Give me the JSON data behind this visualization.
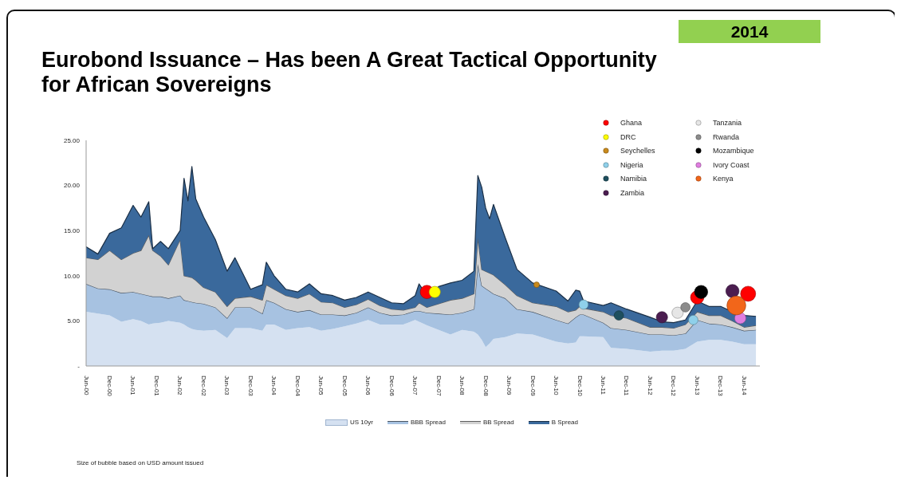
{
  "chart_data": {
    "type": "area",
    "title": "Eurobond Issuance – Has been A Great Tactical Opportunity for African Sovereigns",
    "subtitle": "2014",
    "annotations": [
      "Size of bubble based on USD amount issued"
    ],
    "stacked": true,
    "legend": "bottom",
    "grid": false,
    "x": [
      "2000-06",
      "2000-09",
      "2000-12",
      "2001-03",
      "2001-06",
      "2001-08",
      "2001-10",
      "2001-11",
      "2002-01",
      "2002-03",
      "2002-06",
      "2002-07",
      "2002-08",
      "2002-09",
      "2002-10",
      "2002-12",
      "2003-03",
      "2003-06",
      "2003-08",
      "2003-12",
      "2004-03",
      "2004-04",
      "2004-06",
      "2004-09",
      "2004-12",
      "2005-03",
      "2005-06",
      "2005-09",
      "2005-12",
      "2006-03",
      "2006-06",
      "2006-09",
      "2006-12",
      "2007-03",
      "2007-06",
      "2007-07",
      "2007-09",
      "2007-12",
      "2008-03",
      "2008-06",
      "2008-09",
      "2008-10",
      "2008-11",
      "2008-12",
      "2009-01",
      "2009-02",
      "2009-05",
      "2009-08",
      "2009-12",
      "2010-06",
      "2010-09",
      "2010-11",
      "2010-12",
      "2011-01",
      "2011-06",
      "2011-08",
      "2011-12",
      "2012-06",
      "2012-09",
      "2012-12",
      "2013-03",
      "2013-06",
      "2013-09",
      "2013-12",
      "2014-03",
      "2014-06",
      "2014-09"
    ],
    "xlim": [
      "2000-06",
      "2014-10"
    ],
    "xticks": [
      {
        "value": "2000-06",
        "label": "Jun-00"
      },
      {
        "value": "2000-12",
        "label": "Dec-00"
      },
      {
        "value": "2001-06",
        "label": "Jun-01"
      },
      {
        "value": "2001-12",
        "label": "Dec-01"
      },
      {
        "value": "2002-06",
        "label": "Jun-02"
      },
      {
        "value": "2002-12",
        "label": "Dec-02"
      },
      {
        "value": "2003-06",
        "label": "Jun-03"
      },
      {
        "value": "2003-12",
        "label": "Dec-03"
      },
      {
        "value": "2004-06",
        "label": "Jun-04"
      },
      {
        "value": "2004-12",
        "label": "Dec-04"
      },
      {
        "value": "2005-06",
        "label": "Jun-05"
      },
      {
        "value": "2005-12",
        "label": "Dec-05"
      },
      {
        "value": "2006-06",
        "label": "Jun-06"
      },
      {
        "value": "2006-12",
        "label": "Dec-06"
      },
      {
        "value": "2007-06",
        "label": "Jun-07"
      },
      {
        "value": "2007-12",
        "label": "Dec-07"
      },
      {
        "value": "2008-06",
        "label": "Jun-08"
      },
      {
        "value": "2008-12",
        "label": "Dec-08"
      },
      {
        "value": "2009-06",
        "label": "Jun-09"
      },
      {
        "value": "2009-12",
        "label": "Dec-09"
      },
      {
        "value": "2010-06",
        "label": "Jun-10"
      },
      {
        "value": "2010-12",
        "label": "Dec-10"
      },
      {
        "value": "2011-06",
        "label": "Jun-11"
      },
      {
        "value": "2011-12",
        "label": "Dec-11"
      },
      {
        "value": "2012-06",
        "label": "Jun-12"
      },
      {
        "value": "2012-12",
        "label": "Dec-12"
      },
      {
        "value": "2013-06",
        "label": "Jun-13"
      },
      {
        "value": "2013-12",
        "label": "Dec-13"
      },
      {
        "value": "2014-06",
        "label": "Jun-14"
      }
    ],
    "ylim": [
      0,
      25
    ],
    "yticks": [
      {
        "value": 0,
        "label": "-"
      },
      {
        "value": 5,
        "label": "5.00"
      },
      {
        "value": 10,
        "label": "10.00"
      },
      {
        "value": 15,
        "label": "15.00"
      },
      {
        "value": 20,
        "label": "20.00"
      },
      {
        "value": 25,
        "label": "25.00"
      }
    ],
    "series": [
      {
        "name": "US 10yr",
        "color": "#d5e1f1",
        "values": [
          6.0,
          5.8,
          5.6,
          4.9,
          5.2,
          5.0,
          4.6,
          4.7,
          4.8,
          5.0,
          4.8,
          4.6,
          4.3,
          4.1,
          4.0,
          3.9,
          4.0,
          3.1,
          4.2,
          4.2,
          3.9,
          4.6,
          4.6,
          4.0,
          4.2,
          4.3,
          3.9,
          4.1,
          4.4,
          4.7,
          5.1,
          4.6,
          4.6,
          4.6,
          5.1,
          4.9,
          4.5,
          4.0,
          3.5,
          4.0,
          3.8,
          3.5,
          2.9,
          2.1,
          2.5,
          3.0,
          3.2,
          3.6,
          3.5,
          2.7,
          2.5,
          2.6,
          3.3,
          3.3,
          3.2,
          2.0,
          1.9,
          1.6,
          1.7,
          1.7,
          1.9,
          2.7,
          2.9,
          2.9,
          2.7,
          2.4,
          2.4
        ]
      },
      {
        "name": "BBB Spread",
        "color": "#a7c2e1",
        "values": [
          3.1,
          2.8,
          2.9,
          3.2,
          3.0,
          3.0,
          3.2,
          3.0,
          2.9,
          2.5,
          3.0,
          2.7,
          2.9,
          3.0,
          3.0,
          3.0,
          2.5,
          2.2,
          2.3,
          2.3,
          1.9,
          2.7,
          2.4,
          2.3,
          1.8,
          1.9,
          1.8,
          1.6,
          1.2,
          1.2,
          1.4,
          1.3,
          1.0,
          1.1,
          1.0,
          1.2,
          1.4,
          1.8,
          2.2,
          1.9,
          2.5,
          7.8,
          6.0,
          6.5,
          5.8,
          5.0,
          4.3,
          2.7,
          2.5,
          2.4,
          2.2,
          2.8,
          2.4,
          2.4,
          1.6,
          2.2,
          2.1,
          1.9,
          1.8,
          1.7,
          1.7,
          2.4,
          1.8,
          1.7,
          1.6,
          1.5,
          1.6
        ]
      },
      {
        "name": "BB Spread",
        "color": "#d2d2d2",
        "values": [
          2.9,
          3.2,
          4.3,
          3.7,
          4.3,
          4.8,
          6.7,
          5.1,
          4.5,
          3.7,
          6.2,
          2.7,
          2.7,
          2.7,
          2.5,
          1.8,
          1.7,
          1.3,
          1.0,
          1.2,
          1.5,
          1.7,
          1.5,
          1.5,
          1.5,
          1.8,
          1.4,
          1.3,
          0.9,
          0.9,
          0.9,
          0.8,
          0.7,
          0.5,
          0.4,
          0.9,
          0.6,
          1.1,
          1.6,
          1.6,
          1.7,
          2.9,
          1.8,
          1.9,
          2.0,
          2.1,
          1.5,
          1.5,
          1.0,
          1.5,
          1.3,
          0.8,
          0.9,
          0.7,
          1.2,
          1.4,
          1.3,
          0.8,
          0.8,
          0.8,
          1.0,
          0.9,
          0.9,
          1.0,
          0.7,
          0.4,
          0.5
        ]
      },
      {
        "name": "B Spread",
        "color": "#3a699c",
        "values": [
          1.2,
          0.6,
          1.9,
          3.5,
          5.3,
          3.7,
          3.7,
          0.2,
          1.6,
          1.8,
          1.0,
          10.8,
          8.4,
          12.3,
          9.0,
          7.8,
          5.8,
          3.9,
          4.5,
          0.8,
          1.7,
          2.5,
          1.5,
          0.7,
          0.7,
          1.1,
          0.9,
          0.8,
          0.8,
          0.8,
          0.8,
          0.9,
          0.7,
          0.7,
          1.3,
          2.1,
          1.3,
          1.9,
          1.9,
          2.0,
          2.5,
          6.9,
          9.1,
          7.0,
          6.0,
          7.8,
          5.2,
          2.9,
          2.2,
          1.7,
          1.2,
          2.2,
          1.7,
          0.8,
          0.7,
          1.4,
          1.0,
          1.1,
          0.6,
          0.6,
          0.5,
          1.2,
          1.0,
          1.0,
          1.0,
          1.3,
          1.0
        ]
      },
      {
        "name": "Ghana",
        "type": "bubble",
        "color": "#ff0000",
        "x": [
          "2007-09",
          "2013-06",
          "2014-07"
        ],
        "values": [
          8.2,
          7.6,
          8.0
        ],
        "sizes": [
          0.5,
          0.5,
          0.64
        ]
      },
      {
        "name": "DRC",
        "type": "bubble",
        "color": "#ffff00",
        "x": [
          "2007-11"
        ],
        "values": [
          8.2
        ],
        "sizes": [
          0.36
        ]
      },
      {
        "name": "Seychelles",
        "type": "bubble",
        "color": "#c98a1c",
        "x": [
          "2010-01"
        ],
        "values": [
          9.0
        ],
        "sizes": [
          0.09
        ]
      },
      {
        "name": "Nigeria",
        "type": "bubble",
        "color": "#8fd0ea",
        "x": [
          "2011-01",
          "2013-05"
        ],
        "values": [
          6.8,
          5.1
        ],
        "sizes": [
          0.25,
          0.25
        ]
      },
      {
        "name": "Namibia",
        "type": "bubble",
        "color": "#1e4f5e",
        "x": [
          "2011-10"
        ],
        "values": [
          5.6
        ],
        "sizes": [
          0.25
        ]
      },
      {
        "name": "Zambia",
        "type": "bubble",
        "color": "#4b1d50",
        "x": [
          "2012-09",
          "2014-03"
        ],
        "values": [
          5.4,
          8.3
        ],
        "sizes": [
          0.36,
          0.49
        ]
      },
      {
        "name": "Tanzania",
        "type": "bubble",
        "color": "#e6e6e6",
        "x": [
          "2013-01"
        ],
        "values": [
          5.9
        ],
        "sizes": [
          0.36
        ]
      },
      {
        "name": "Rwanda",
        "type": "bubble",
        "color": "#8c8c8c",
        "x": [
          "2013-03"
        ],
        "values": [
          6.5
        ],
        "sizes": [
          0.25
        ]
      },
      {
        "name": "Mozambique",
        "type": "bubble",
        "color": "#000000",
        "x": [
          "2013-07"
        ],
        "values": [
          8.2
        ],
        "sizes": [
          0.49
        ]
      },
      {
        "name": "Ivory Coast",
        "type": "bubble",
        "color": "#e07ee0",
        "x": [
          "2014-05"
        ],
        "values": [
          5.3
        ],
        "sizes": [
          0.36
        ]
      },
      {
        "name": "Kenya",
        "type": "bubble",
        "color": "#f2661a",
        "x": [
          "2014-04"
        ],
        "values": [
          6.7
        ],
        "sizes": [
          1
        ]
      }
    ]
  }
}
